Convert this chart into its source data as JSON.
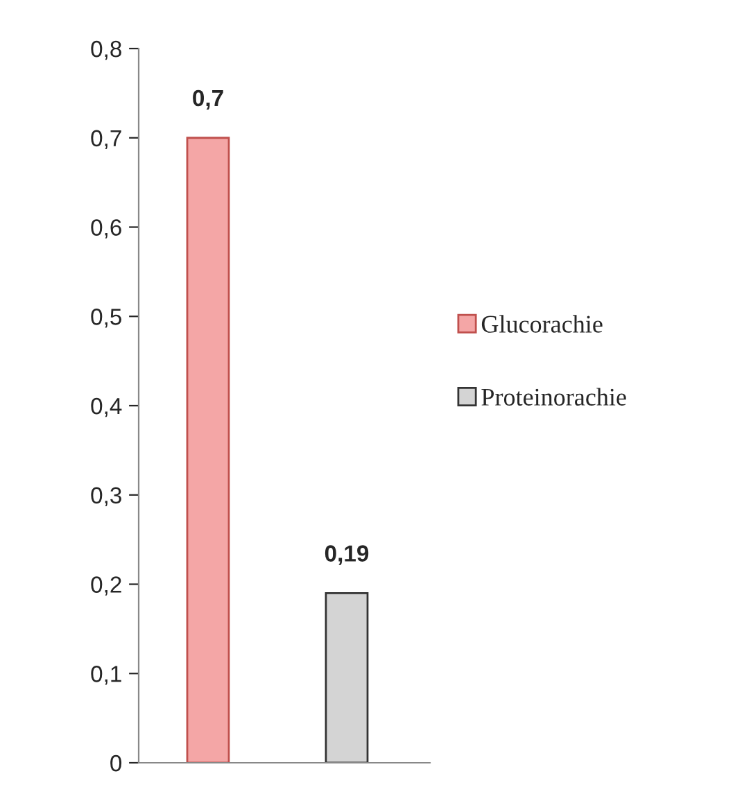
{
  "chart_data": {
    "type": "bar",
    "categories": [
      null,
      null
    ],
    "series": [
      {
        "name": "Glucorachie",
        "color": "#f4a6a6",
        "values": [
          0.7,
          null
        ],
        "value_labels": [
          "0,7",
          null
        ]
      },
      {
        "name": "Proteinorachie",
        "color": "#d4d4d4",
        "values": [
          null,
          0.19
        ],
        "value_labels": [
          null,
          "0,19"
        ]
      }
    ],
    "ylim": [
      0,
      0.8
    ],
    "yticks": [
      {
        "value": 0,
        "label": "0"
      },
      {
        "value": 0.1,
        "label": "0,1"
      },
      {
        "value": 0.2,
        "label": "0,2"
      },
      {
        "value": 0.3,
        "label": "0,3"
      },
      {
        "value": 0.4,
        "label": "0,4"
      },
      {
        "value": 0.5,
        "label": "0,5"
      },
      {
        "value": 0.6,
        "label": "0,6"
      },
      {
        "value": 0.7,
        "label": "0,7"
      },
      {
        "value": 0.8,
        "label": "0,8"
      }
    ],
    "grid": false,
    "legend": "right"
  }
}
